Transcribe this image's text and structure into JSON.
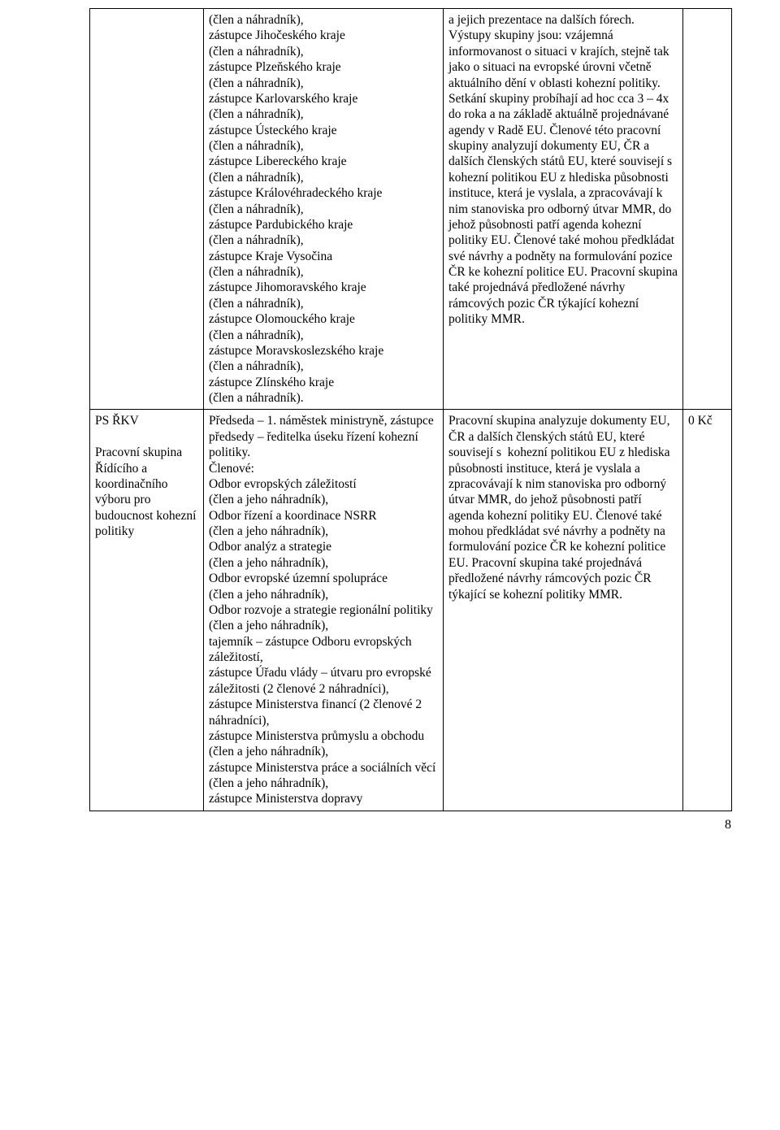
{
  "table": {
    "rows": [
      {
        "c1": "",
        "c2": "(člen a náhradník),\nzástupce Jihočeského kraje\n(člen a náhradník),\nzástupce Plzeňského kraje\n(člen a náhradník),\nzástupce Karlovarského kraje\n(člen a náhradník),\nzástupce Ústeckého kraje\n(člen a náhradník),\nzástupce Libereckého kraje\n(člen a náhradník),\nzástupce Královéhradeckého kraje\n(člen a náhradník),\nzástupce Pardubického kraje\n(člen a náhradník),\nzástupce Kraje Vysočina\n(člen a náhradník),\nzástupce Jihomoravského kraje\n(člen a náhradník),\nzástupce Olomouckého kraje\n(člen a náhradník),\nzástupce Moravskoslezského kraje\n(člen a náhradník),\nzástupce Zlínského kraje\n(člen a náhradník).",
        "c3": "a jejich prezentace na dalších fórech. Výstupy skupiny jsou: vzájemná informovanost o situaci v krajích, stejně tak jako o situaci na evropské úrovni včetně aktuálního dění v oblasti kohezní politiky. Setkání skupiny probíhají ad hoc cca 3 – 4x do roka a na základě aktuálně projednávané agendy v Radě EU. Členové této pracovní skupiny analyzují dokumenty EU, ČR a dalších členských států EU, které souvisejí s  kohezní politikou EU z hlediska působnosti instituce, která je vyslala, a zpracovávají k nim stanoviska pro odborný útvar MMR, do jehož působnosti patří agenda kohezní politiky EU. Členové také mohou předkládat své návrhy a podněty na formulování pozice ČR ke kohezní politice EU. Pracovní skupina také projednává předložené návrhy rámcových pozic ČR týkající kohezní politiky MMR.",
        "c4": ""
      },
      {
        "c1": "PS ŘKV\n\nPracovní skupina Řídícího a koordinačního výboru pro budoucnost kohezní politiky",
        "c2": "Předseda – 1. náměstek ministryně, zástupce předsedy – ředitelka úseku řízení kohezní politiky.\nČlenové:\nOdbor evropských záležitostí\n(člen a jeho náhradník),\nOdbor řízení a koordinace NSRR\n(člen a jeho náhradník),\nOdbor analýz a strategie\n(člen a jeho náhradník),\nOdbor evropské územní spolupráce\n(člen a jeho náhradník),\nOdbor rozvoje a strategie regionální politiky (člen a jeho náhradník),\ntajemník – zástupce Odboru evropských záležitostí,\nzástupce Úřadu vlády – útvaru pro evropské záležitosti (2 členové 2 náhradníci),\nzástupce Ministerstva financí (2 členové 2 náhradníci),\nzástupce Ministerstva průmyslu a obchodu (člen a jeho náhradník),\nzástupce Ministerstva práce a sociálních věcí (člen a jeho náhradník),\nzástupce Ministerstva dopravy",
        "c3": "Pracovní skupina analyzuje dokumenty EU, ČR a dalších členských států EU, které souvisejí s  kohezní politikou EU z hlediska působnosti instituce, která je vyslala a zpracovávají k nim stanoviska pro odborný útvar MMR, do jehož působnosti patří agenda kohezní politiky EU. Členové také mohou předkládat své návrhy a podněty na formulování pozice ČR ke kohezní politice EU. Pracovní skupina také projednává předložené návrhy rámcových pozic ČR týkající se kohezní politiky MMR.",
        "c4": "0 Kč"
      }
    ]
  },
  "page_number": "8"
}
